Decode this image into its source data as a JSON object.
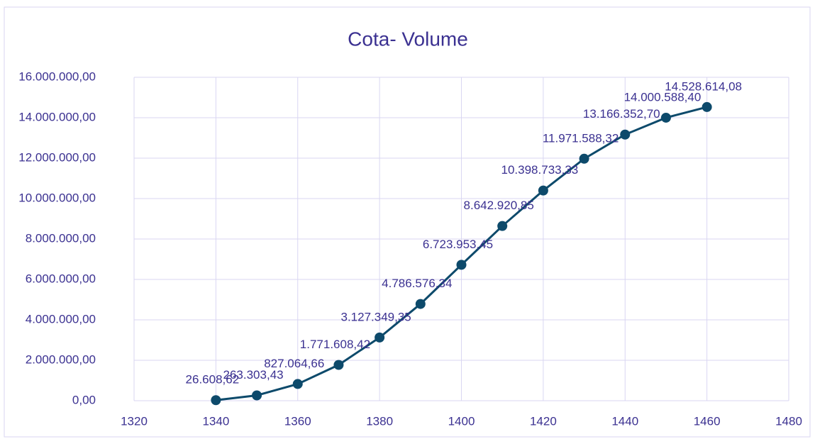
{
  "chart_data": {
    "type": "scatter-line",
    "title": "Cota- Volume",
    "x": [
      1340,
      1350,
      1360,
      1370,
      1380,
      1390,
      1400,
      1410,
      1420,
      1430,
      1440,
      1450,
      1460
    ],
    "values": [
      26608.62,
      263303.43,
      827064.66,
      1771608.42,
      3127349.35,
      4786576.34,
      6723953.45,
      8642920.85,
      10398733.33,
      11971588.32,
      13166352.7,
      14000588.4,
      14528614.08
    ],
    "value_labels": [
      "26.608,62",
      "263.303,43",
      "827.064,66",
      "1.771.608,42",
      "3.127.349,35",
      "4.786.576,34",
      "6.723.953,45",
      "8.642.920,85",
      "10.398.733,33",
      "11.971.588,32",
      "13.166.352,70",
      "14.000.588,40",
      "14.528.614,08"
    ],
    "color": "#0d4a6b",
    "xlim": [
      1320,
      1480
    ],
    "xticks": [
      1320,
      1340,
      1360,
      1380,
      1400,
      1420,
      1440,
      1460,
      1480
    ],
    "ylim": [
      0,
      16000000
    ],
    "yticks": [
      {
        "value": 0,
        "label": "0,00"
      },
      {
        "value": 2000000,
        "label": "2.000.000,00"
      },
      {
        "value": 4000000,
        "label": "4.000.000,00"
      },
      {
        "value": 6000000,
        "label": "6.000.000,00"
      },
      {
        "value": 8000000,
        "label": "8.000.000,00"
      },
      {
        "value": 10000000,
        "label": "10.000.000,00"
      },
      {
        "value": 12000000,
        "label": "12.000.000,00"
      },
      {
        "value": 14000000,
        "label": "14.000.000,00"
      },
      {
        "value": 16000000,
        "label": "16.000.000,00"
      }
    ],
    "grid": true
  }
}
